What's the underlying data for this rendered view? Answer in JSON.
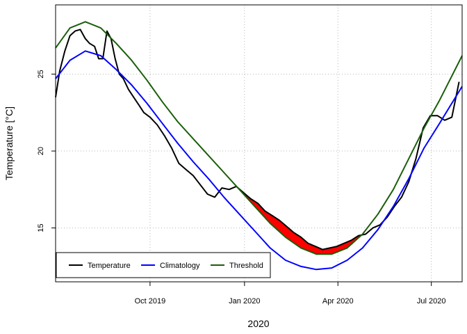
{
  "chart_data": {
    "type": "line",
    "title": "",
    "xlabel": "2020",
    "ylabel": "Temperature [°C]",
    "x_ticks": [
      "Oct 2019",
      "Jan 2020",
      "Apr 2020",
      "Jul 2020"
    ],
    "x_tick_dates": [
      "2019-10-01",
      "2020-01-01",
      "2020-04-01",
      "2020-07-01"
    ],
    "xlim": [
      "2019-07-01",
      "2020-07-31"
    ],
    "ylim": [
      11.5,
      29.5
    ],
    "y_ticks": [
      15,
      20,
      25
    ],
    "grid": true,
    "legend_position": "bottom-left",
    "event_fill_colors": [
      "#ff0000",
      "#f08080"
    ],
    "series": [
      {
        "name": "Temperature",
        "color": "#000000",
        "dates": [
          "2019-07-01",
          "2019-07-05",
          "2019-07-10",
          "2019-07-15",
          "2019-07-20",
          "2019-07-25",
          "2019-07-30",
          "2019-08-03",
          "2019-08-08",
          "2019-08-12",
          "2019-08-16",
          "2019-08-20",
          "2019-08-24",
          "2019-08-28",
          "2019-09-01",
          "2019-09-05",
          "2019-09-10",
          "2019-09-15",
          "2019-09-20",
          "2019-09-25",
          "2019-10-01",
          "2019-10-08",
          "2019-10-15",
          "2019-10-22",
          "2019-10-29",
          "2019-11-05",
          "2019-11-12",
          "2019-11-19",
          "2019-11-26",
          "2019-12-03",
          "2019-12-10",
          "2019-12-17",
          "2019-12-24",
          "2019-12-31",
          "2020-01-07",
          "2020-01-14",
          "2020-01-21",
          "2020-01-28",
          "2020-02-04",
          "2020-02-11",
          "2020-02-18",
          "2020-02-25",
          "2020-03-03",
          "2020-03-10",
          "2020-03-17",
          "2020-03-24",
          "2020-03-31",
          "2020-04-07",
          "2020-04-14",
          "2020-04-21",
          "2020-04-28",
          "2020-05-05",
          "2020-05-12",
          "2020-05-19",
          "2020-05-26",
          "2020-06-02",
          "2020-06-09",
          "2020-06-16",
          "2020-06-23",
          "2020-06-30",
          "2020-07-07",
          "2020-07-14",
          "2020-07-21",
          "2020-07-28"
        ],
        "values": [
          23.5,
          25.2,
          26.5,
          27.5,
          27.8,
          27.9,
          27.3,
          27.0,
          26.8,
          26.0,
          26.0,
          27.8,
          27.3,
          26.0,
          25.0,
          24.7,
          24.0,
          23.5,
          23.0,
          22.5,
          22.2,
          21.7,
          21.0,
          20.2,
          19.2,
          18.8,
          18.4,
          17.8,
          17.2,
          17.0,
          17.6,
          17.5,
          17.7,
          17.3,
          16.9,
          16.6,
          16.1,
          15.8,
          15.5,
          15.1,
          14.7,
          14.4,
          14.0,
          13.8,
          13.6,
          13.7,
          13.8,
          14.0,
          14.2,
          14.5,
          14.6,
          15.0,
          15.2,
          15.7,
          16.4,
          17.0,
          18.0,
          19.5,
          21.5,
          22.3,
          22.3,
          22.0,
          22.2,
          24.5
        ]
      },
      {
        "name": "Climatology",
        "color": "#0000ff",
        "dates": [
          "2019-07-01",
          "2019-07-15",
          "2019-07-30",
          "2019-08-14",
          "2019-08-29",
          "2019-09-13",
          "2019-09-28",
          "2019-10-13",
          "2019-10-28",
          "2019-11-12",
          "2019-11-27",
          "2019-12-12",
          "2019-12-27",
          "2020-01-11",
          "2020-01-26",
          "2020-02-10",
          "2020-02-25",
          "2020-03-11",
          "2020-03-26",
          "2020-04-10",
          "2020-04-25",
          "2020-05-10",
          "2020-05-25",
          "2020-06-09",
          "2020-06-24",
          "2020-07-09",
          "2020-07-31"
        ],
        "values": [
          24.7,
          25.9,
          26.5,
          26.2,
          25.3,
          24.3,
          23.1,
          21.8,
          20.5,
          19.3,
          18.2,
          17.0,
          15.9,
          14.8,
          13.7,
          12.9,
          12.5,
          12.3,
          12.4,
          12.9,
          13.7,
          14.9,
          16.4,
          18.2,
          20.2,
          21.8,
          24.2
        ]
      },
      {
        "name": "Threshold",
        "color": "#1a5e0a",
        "dates": [
          "2019-07-01",
          "2019-07-15",
          "2019-07-30",
          "2019-08-14",
          "2019-08-29",
          "2019-09-13",
          "2019-09-28",
          "2019-10-13",
          "2019-10-28",
          "2019-11-12",
          "2019-11-27",
          "2019-12-12",
          "2019-12-27",
          "2020-01-11",
          "2020-01-26",
          "2020-02-10",
          "2020-02-25",
          "2020-03-11",
          "2020-03-26",
          "2020-04-10",
          "2020-04-25",
          "2020-05-10",
          "2020-05-25",
          "2020-06-09",
          "2020-06-24",
          "2020-07-09",
          "2020-07-31"
        ],
        "values": [
          26.7,
          28.0,
          28.4,
          28.0,
          27.0,
          25.9,
          24.6,
          23.2,
          21.9,
          20.8,
          19.7,
          18.6,
          17.5,
          16.4,
          15.3,
          14.4,
          13.7,
          13.3,
          13.3,
          13.7,
          14.6,
          15.9,
          17.5,
          19.5,
          21.5,
          23.3,
          26.2
        ]
      }
    ]
  }
}
